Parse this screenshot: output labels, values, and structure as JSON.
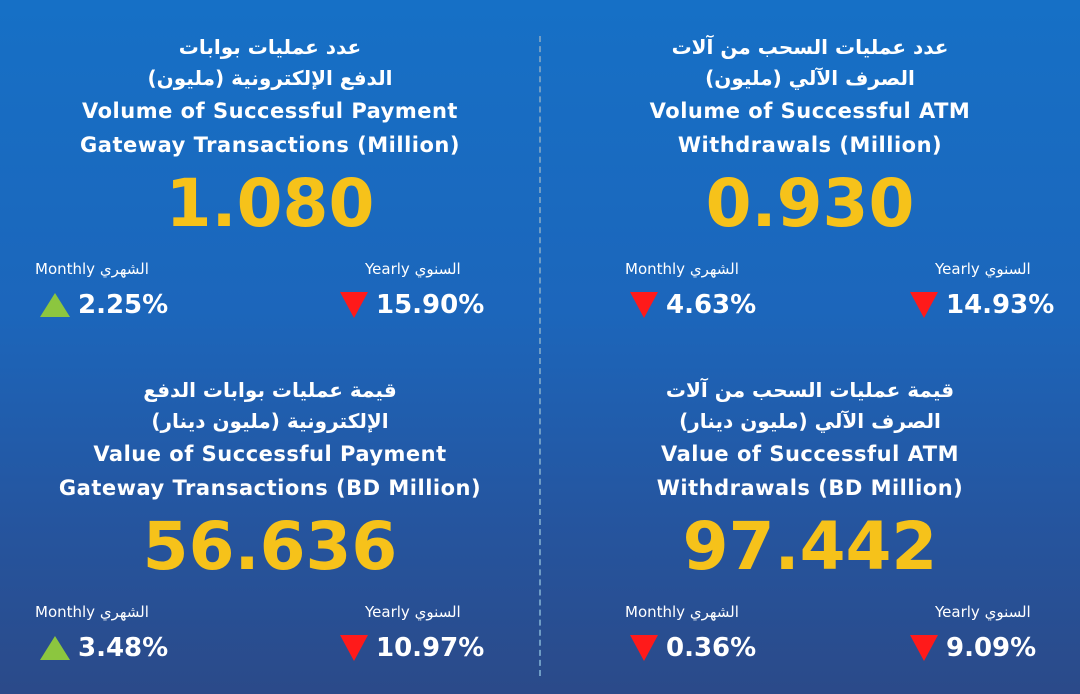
{
  "colors": {
    "value": "#f6c21a",
    "up": "#8cc63f",
    "down": "#ff1a1a"
  },
  "panels": [
    {
      "ar1": "عدد عمليات بوابات",
      "ar2": "الدفع الإلكترونية (مليون)",
      "en1": "Volume of Successful Payment",
      "en2": "Gateway Transactions (Million)",
      "value": "1.080",
      "monthly_label": "Monthly الشهري",
      "monthly_pct": "2.25%",
      "monthly_dir": "up",
      "yearly_label": "Yearly السنوي",
      "yearly_pct": "15.90%",
      "yearly_dir": "down"
    },
    {
      "ar1": "عدد عمليات السحب من آلات",
      "ar2": "الصرف الآلي (مليون)",
      "en1": "Volume of  Successful ATM",
      "en2": "Withdrawals (Million)",
      "value": "0.930",
      "monthly_label": "Monthly الشهري",
      "monthly_pct": "4.63%",
      "monthly_dir": "down",
      "yearly_label": "Yearly السنوي",
      "yearly_pct": "14.93%",
      "yearly_dir": "down"
    },
    {
      "ar1": "قيمة عمليات بوابات الدفع",
      "ar2": "الإلكترونية (مليون دينار)",
      "en1": "Value of Successful Payment",
      "en2": "Gateway Transactions (BD Million)",
      "value": "56.636",
      "monthly_label": "Monthly الشهري",
      "monthly_pct": "3.48%",
      "monthly_dir": "up",
      "yearly_label": "Yearly السنوي",
      "yearly_pct": "10.97%",
      "yearly_dir": "down"
    },
    {
      "ar1": "قيمة عمليات السحب من آلات",
      "ar2": "الصرف الآلي (مليون دينار)",
      "en1": "Value of Successful ATM",
      "en2": "Withdrawals (BD Million)",
      "value": "97.442",
      "monthly_label": "Monthly الشهري",
      "monthly_pct": "0.36%",
      "monthly_dir": "down",
      "yearly_label": "Yearly السنوي",
      "yearly_pct": "9.09%",
      "yearly_dir": "down"
    }
  ]
}
